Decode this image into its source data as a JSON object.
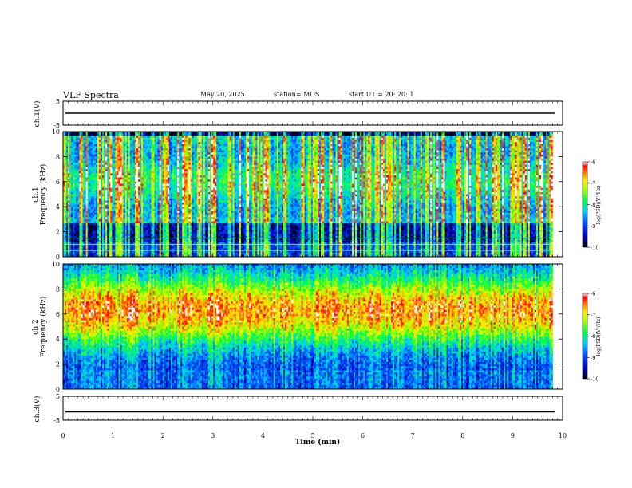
{
  "header": {
    "title": "VLF Spectra",
    "date": "May 20, 2025",
    "station": "station= MOS",
    "start": "start  UT =   20: 20: 1"
  },
  "chart_data": [
    {
      "type": "line",
      "name": "ch1-waveform",
      "ylabel": "ch.1(V)",
      "ylim": [
        -5,
        5
      ],
      "yticks": [
        5,
        -5
      ],
      "xlim": [
        0,
        10
      ],
      "trace_value": 0
    },
    {
      "type": "heatmap",
      "name": "ch1-spectrogram",
      "ylabel": "ch.1\nFrequency (kHz)",
      "ylabel_lines": [
        "ch.1",
        "Frequency (kHz)"
      ],
      "ylim": [
        0,
        10
      ],
      "yticks": [
        0,
        2,
        4,
        6,
        8,
        10
      ],
      "xlim": [
        0,
        10
      ],
      "data_xmax": 9.8,
      "colorbar": {
        "label": "log(PSD)(V²/Hz)",
        "range": [
          -10,
          -6
        ],
        "ticks": [
          -6,
          -7,
          -8,
          -9,
          -10
        ]
      },
      "lines_khz": [
        0.5,
        1.0,
        1.5
      ]
    },
    {
      "type": "heatmap",
      "name": "ch2-spectrogram",
      "ylabel_lines": [
        "ch.2",
        "Frequency (kHz)"
      ],
      "ylim": [
        0,
        10
      ],
      "yticks": [
        0,
        2,
        4,
        6,
        8,
        10
      ],
      "xlim": [
        0,
        10
      ],
      "data_xmax": 9.8,
      "colorbar": {
        "label": "log(PSD)(V²/Hz)",
        "range": [
          -10,
          -6
        ],
        "ticks": [
          -6,
          -7,
          -8,
          -9,
          -10
        ]
      }
    },
    {
      "type": "line",
      "name": "ch3-waveform",
      "ylabel": "ch.3(V)",
      "ylim": [
        -5,
        5
      ],
      "yticks": [
        5,
        -5
      ],
      "xlim": [
        0,
        10
      ],
      "trace_value": -1.5
    }
  ],
  "x_axis": {
    "label": "Time (min)",
    "ticks": [
      "0",
      "1",
      "2",
      "3",
      "4",
      "5",
      "6",
      "7",
      "8",
      "9",
      "10"
    ]
  }
}
